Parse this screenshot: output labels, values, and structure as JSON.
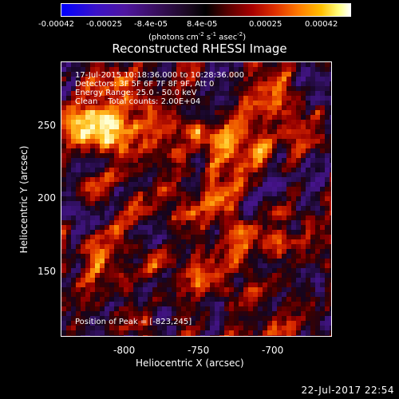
{
  "colorbar": {
    "ticks": [
      "-0.00042",
      "-0.00025",
      "-8.4e-05",
      "8.4e-05",
      "0.00025",
      "0.00042"
    ],
    "units_main": "(photons cm",
    "units_exp1": "-2",
    "units_mid1": " s",
    "units_exp2": "-1",
    "units_mid2": " asec",
    "units_exp3": "-2",
    "units_end": ")",
    "range": [
      -0.00042,
      0.00042
    ]
  },
  "plot": {
    "title": "Reconstructed RHESSI Image",
    "annotations": {
      "time": "17-Jul-2015 10:18:36.000 to 10:28:36.000",
      "detectors": "Detectors: 3F 5F 6F 7F 8F 9F, Att 0",
      "energy": "Energy Range: 25.0 - 50.0 keV",
      "clean": "Clean    Total counts: 2.00E+04"
    },
    "peak": "Position of Peak = [-823,245]",
    "xlabel": "Heliocentric X (arcsec)",
    "ylabel": "Heliocentric Y (arcsec)",
    "xticks": [
      "-800",
      "-750",
      "-700"
    ],
    "yticks": [
      "250",
      "200",
      "150"
    ],
    "xlim": [
      -847,
      -672
    ],
    "ylim": [
      103,
      282
    ]
  },
  "footer": {
    "date": "22-Jul-2017 22:54"
  }
}
